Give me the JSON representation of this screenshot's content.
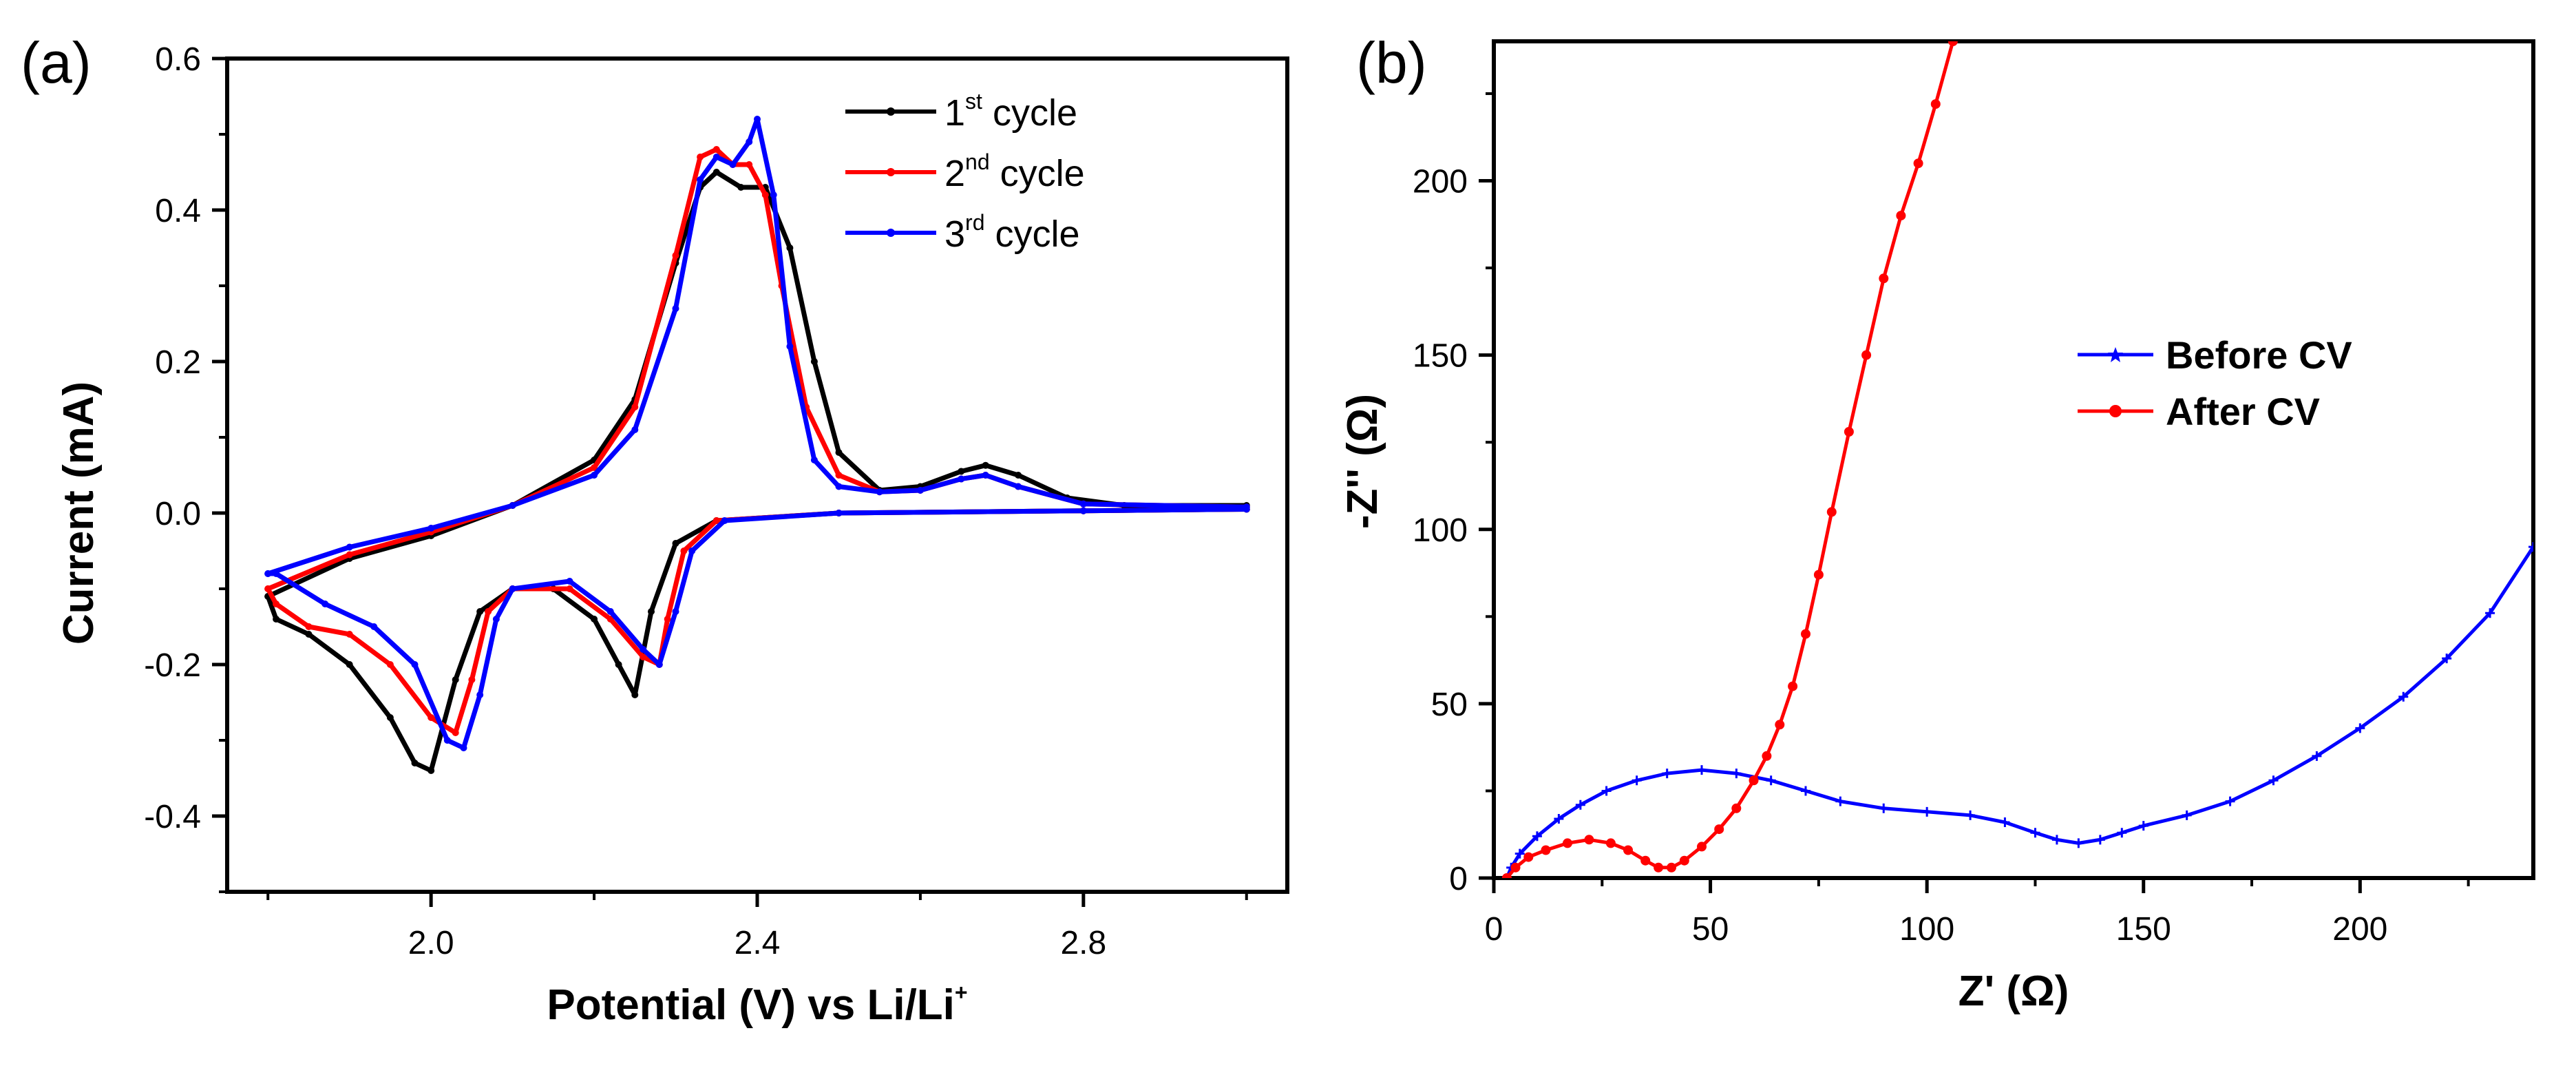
{
  "chart_data": [
    {
      "type": "line",
      "panel_label": "(a)",
      "xlabel": "Potential (V) vs Li/Li",
      "xlabel_sup": "+",
      "ylabel": "Current (mA)",
      "xlim": [
        1.75,
        3.05
      ],
      "ylim": [
        -0.5,
        0.6
      ],
      "x_ticks": [
        2.0,
        2.4,
        2.8
      ],
      "x_tick_labels": [
        "2.0",
        "2.4",
        "2.8"
      ],
      "y_ticks": [
        -0.4,
        -0.2,
        0.0,
        0.2,
        0.4,
        0.6
      ],
      "y_tick_labels": [
        "-0.4",
        "-0.2",
        "0.0",
        "0.2",
        "0.4",
        "0.6"
      ],
      "legend_position": "top-right",
      "series": [
        {
          "name": "1st cycle",
          "legend_main": "1",
          "legend_sup": "st",
          "legend_tail": " cycle",
          "color": "#000000",
          "anodic": [
            [
              1.8,
              -0.11
            ],
            [
              1.9,
              -0.06
            ],
            [
              2.0,
              -0.03
            ],
            [
              2.1,
              0.01
            ],
            [
              2.2,
              0.07
            ],
            [
              2.25,
              0.15
            ],
            [
              2.3,
              0.33
            ],
            [
              2.33,
              0.43
            ],
            [
              2.35,
              0.45
            ],
            [
              2.38,
              0.43
            ],
            [
              2.41,
              0.43
            ],
            [
              2.44,
              0.35
            ],
            [
              2.47,
              0.2
            ],
            [
              2.5,
              0.08
            ],
            [
              2.55,
              0.03
            ],
            [
              2.6,
              0.035
            ],
            [
              2.65,
              0.055
            ],
            [
              2.68,
              0.063
            ],
            [
              2.72,
              0.05
            ],
            [
              2.78,
              0.02
            ],
            [
              2.85,
              0.01
            ],
            [
              3.0,
              0.01
            ]
          ],
          "cathodic": [
            [
              3.0,
              0.005
            ],
            [
              2.8,
              0.003
            ],
            [
              2.5,
              0.0
            ],
            [
              2.35,
              -0.01
            ],
            [
              2.3,
              -0.04
            ],
            [
              2.27,
              -0.13
            ],
            [
              2.25,
              -0.24
            ],
            [
              2.23,
              -0.2
            ],
            [
              2.2,
              -0.14
            ],
            [
              2.15,
              -0.1
            ],
            [
              2.1,
              -0.1
            ],
            [
              2.06,
              -0.13
            ],
            [
              2.03,
              -0.22
            ],
            [
              2.0,
              -0.34
            ],
            [
              1.98,
              -0.33
            ],
            [
              1.95,
              -0.27
            ],
            [
              1.9,
              -0.2
            ],
            [
              1.85,
              -0.16
            ],
            [
              1.81,
              -0.14
            ]
          ]
        },
        {
          "name": "2nd cycle",
          "legend_main": "2",
          "legend_sup": "nd",
          "legend_tail": " cycle",
          "color": "#ff0000",
          "anodic": [
            [
              1.8,
              -0.1
            ],
            [
              1.9,
              -0.055
            ],
            [
              2.0,
              -0.025
            ],
            [
              2.1,
              0.01
            ],
            [
              2.2,
              0.06
            ],
            [
              2.25,
              0.14
            ],
            [
              2.3,
              0.34
            ],
            [
              2.33,
              0.47
            ],
            [
              2.35,
              0.48
            ],
            [
              2.37,
              0.46
            ],
            [
              2.39,
              0.46
            ],
            [
              2.41,
              0.42
            ],
            [
              2.43,
              0.3
            ],
            [
              2.46,
              0.14
            ],
            [
              2.5,
              0.05
            ],
            [
              2.55,
              0.028
            ],
            [
              2.6,
              0.03
            ],
            [
              2.65,
              0.045
            ],
            [
              2.68,
              0.05
            ],
            [
              2.72,
              0.035
            ],
            [
              2.8,
              0.012
            ],
            [
              3.0,
              0.008
            ]
          ],
          "cathodic": [
            [
              3.0,
              0.005
            ],
            [
              2.8,
              0.003
            ],
            [
              2.5,
              0.0
            ],
            [
              2.35,
              -0.01
            ],
            [
              2.31,
              -0.05
            ],
            [
              2.29,
              -0.14
            ],
            [
              2.28,
              -0.2
            ],
            [
              2.26,
              -0.19
            ],
            [
              2.22,
              -0.14
            ],
            [
              2.17,
              -0.1
            ],
            [
              2.1,
              -0.1
            ],
            [
              2.07,
              -0.13
            ],
            [
              2.05,
              -0.22
            ],
            [
              2.03,
              -0.29
            ],
            [
              2.0,
              -0.27
            ],
            [
              1.95,
              -0.2
            ],
            [
              1.9,
              -0.16
            ],
            [
              1.85,
              -0.15
            ],
            [
              1.81,
              -0.12
            ]
          ]
        },
        {
          "name": "3rd cycle",
          "legend_main": "3",
          "legend_sup": "rd",
          "legend_tail": " cycle",
          "color": "#0000ff",
          "anodic": [
            [
              1.8,
              -0.08
            ],
            [
              1.9,
              -0.045
            ],
            [
              2.0,
              -0.02
            ],
            [
              2.1,
              0.01
            ],
            [
              2.2,
              0.05
            ],
            [
              2.25,
              0.11
            ],
            [
              2.3,
              0.27
            ],
            [
              2.33,
              0.44
            ],
            [
              2.35,
              0.47
            ],
            [
              2.37,
              0.46
            ],
            [
              2.39,
              0.49
            ],
            [
              2.4,
              0.52
            ],
            [
              2.42,
              0.42
            ],
            [
              2.44,
              0.22
            ],
            [
              2.47,
              0.07
            ],
            [
              2.5,
              0.035
            ],
            [
              2.55,
              0.028
            ],
            [
              2.6,
              0.03
            ],
            [
              2.65,
              0.045
            ],
            [
              2.68,
              0.05
            ],
            [
              2.72,
              0.035
            ],
            [
              2.8,
              0.012
            ],
            [
              3.0,
              0.008
            ]
          ],
          "cathodic": [
            [
              3.0,
              0.005
            ],
            [
              2.8,
              0.003
            ],
            [
              2.5,
              0.0
            ],
            [
              2.36,
              -0.01
            ],
            [
              2.32,
              -0.05
            ],
            [
              2.3,
              -0.13
            ],
            [
              2.28,
              -0.2
            ],
            [
              2.26,
              -0.18
            ],
            [
              2.22,
              -0.13
            ],
            [
              2.17,
              -0.09
            ],
            [
              2.1,
              -0.1
            ],
            [
              2.08,
              -0.14
            ],
            [
              2.06,
              -0.24
            ],
            [
              2.04,
              -0.31
            ],
            [
              2.02,
              -0.3
            ],
            [
              1.98,
              -0.2
            ],
            [
              1.93,
              -0.15
            ],
            [
              1.87,
              -0.12
            ],
            [
              1.81,
              -0.08
            ]
          ]
        }
      ]
    },
    {
      "type": "line",
      "panel_label": "(b)",
      "xlabel": "Z' (Ω)",
      "ylabel": "-Z'' (Ω)",
      "xlim": [
        0,
        240
      ],
      "ylim": [
        0,
        240
      ],
      "x_ticks": [
        0,
        50,
        100,
        150,
        200
      ],
      "x_tick_labels": [
        "0",
        "50",
        "100",
        "150",
        "200"
      ],
      "y_ticks": [
        0,
        50,
        100,
        150,
        200
      ],
      "y_tick_labels": [
        "0",
        "50",
        "100",
        "150",
        "200"
      ],
      "legend_position": "center-right",
      "series": [
        {
          "name": "Before CV",
          "color": "#0000ff",
          "marker": "star",
          "points": [
            [
              3,
              0
            ],
            [
              4,
              3
            ],
            [
              6,
              7
            ],
            [
              10,
              12
            ],
            [
              15,
              17
            ],
            [
              20,
              21
            ],
            [
              26,
              25
            ],
            [
              33,
              28
            ],
            [
              40,
              30
            ],
            [
              48,
              31
            ],
            [
              56,
              30
            ],
            [
              64,
              28
            ],
            [
              72,
              25
            ],
            [
              80,
              22
            ],
            [
              90,
              20
            ],
            [
              100,
              19
            ],
            [
              110,
              18
            ],
            [
              118,
              16
            ],
            [
              125,
              13
            ],
            [
              130,
              11
            ],
            [
              135,
              10
            ],
            [
              140,
              11
            ],
            [
              145,
              13
            ],
            [
              150,
              15
            ],
            [
              160,
              18
            ],
            [
              170,
              22
            ],
            [
              180,
              28
            ],
            [
              190,
              35
            ],
            [
              200,
              43
            ],
            [
              210,
              52
            ],
            [
              220,
              63
            ],
            [
              230,
              76
            ],
            [
              240,
              95
            ]
          ]
        },
        {
          "name": "After CV",
          "color": "#ff0000",
          "marker": "circle",
          "points": [
            [
              3,
              0
            ],
            [
              5,
              3
            ],
            [
              8,
              6
            ],
            [
              12,
              8
            ],
            [
              17,
              10
            ],
            [
              22,
              11
            ],
            [
              27,
              10
            ],
            [
              31,
              8
            ],
            [
              35,
              5
            ],
            [
              38,
              3
            ],
            [
              41,
              3
            ],
            [
              44,
              5
            ],
            [
              48,
              9
            ],
            [
              52,
              14
            ],
            [
              56,
              20
            ],
            [
              60,
              28
            ],
            [
              63,
              35
            ],
            [
              66,
              44
            ],
            [
              69,
              55
            ],
            [
              72,
              70
            ],
            [
              75,
              87
            ],
            [
              78,
              105
            ],
            [
              82,
              128
            ],
            [
              86,
              150
            ],
            [
              90,
              172
            ],
            [
              94,
              190
            ],
            [
              98,
              205
            ],
            [
              102,
              222
            ],
            [
              106,
              240
            ]
          ]
        }
      ]
    }
  ]
}
